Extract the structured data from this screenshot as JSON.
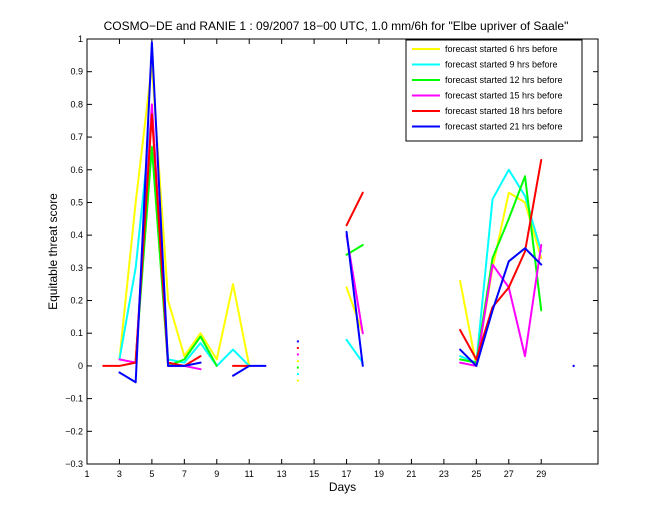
{
  "chart_data": {
    "type": "line",
    "title": "COSMO−DE and RANIE 1 : 09/2007 18−00 UTC, 1.0 mm/6h for \"Elbe upriver of Saale\"",
    "xlabel": "Days",
    "ylabel": "Equitable threat score",
    "xlim": [
      1,
      32.5
    ],
    "ylim": [
      -0.3,
      1.0
    ],
    "xticks": [
      1,
      3,
      5,
      7,
      9,
      11,
      13,
      15,
      17,
      19,
      21,
      23,
      25,
      27,
      29
    ],
    "yticks": [
      -0.3,
      -0.2,
      -0.1,
      0,
      0.1,
      0.2,
      0.3,
      0.4,
      0.5,
      0.6,
      0.7,
      0.8,
      0.9,
      1
    ],
    "xtick_labels": [
      "1",
      "3",
      "5",
      "7",
      "9",
      "11",
      "13",
      "15",
      "17",
      "19",
      "21",
      "23",
      "25",
      "27",
      "29"
    ],
    "ytick_labels": [
      "−0.3",
      "−0.2",
      "−0.1",
      "0",
      "0.1",
      "0.2",
      "0.3",
      "0.4",
      "0.5",
      "0.6",
      "0.7",
      "0.8",
      "0.9",
      "1"
    ],
    "legend_position": "top-right",
    "series": [
      {
        "name": "forecast started 6 hrs before",
        "color": "#ffff00",
        "x": [
          3,
          4,
          5,
          6,
          7,
          8,
          9,
          10,
          11,
          17,
          18,
          24,
          25,
          26,
          27,
          28,
          29
        ],
        "y": [
          0.02,
          0.5,
          0.92,
          0.2,
          0.03,
          0.1,
          0.02,
          0.25,
          0.0,
          0.24,
          0.1,
          0.26,
          0.0,
          0.3,
          0.53,
          0.5,
          0.33
        ]
      },
      {
        "name": "forecast started 9 hrs before",
        "color": "#00ffff",
        "x": [
          3,
          4,
          5,
          6,
          7,
          8,
          9,
          10,
          11,
          17,
          18,
          24,
          25,
          26,
          27,
          28,
          29
        ],
        "y": [
          0.02,
          0.3,
          0.78,
          0.02,
          0.01,
          0.07,
          0.0,
          0.05,
          0.0,
          0.08,
          0.01,
          0.03,
          0.01,
          0.51,
          0.6,
          0.52,
          0.35
        ]
      },
      {
        "name": "forecast started 12 hrs before",
        "color": "#00ff00",
        "x": [
          4,
          5,
          6,
          7,
          8,
          9,
          17,
          18,
          24,
          25,
          26,
          27,
          28,
          29
        ],
        "y": [
          0.02,
          0.67,
          0.0,
          0.02,
          0.09,
          0.0,
          0.34,
          0.37,
          0.02,
          0.01,
          0.33,
          0.45,
          0.58,
          0.17
        ]
      },
      {
        "name": "forecast started 15 hrs before",
        "color": "#ff00ff",
        "x": [
          3,
          4,
          5,
          6,
          7,
          8,
          17,
          18,
          24,
          25,
          26,
          27,
          28,
          29
        ],
        "y": [
          0.02,
          0.01,
          0.8,
          0.0,
          0.0,
          -0.01,
          0.4,
          0.1,
          0.01,
          0.0,
          0.31,
          0.24,
          0.03,
          0.37
        ]
      },
      {
        "name": "forecast started 18 hrs before",
        "color": "#ff0000",
        "x": [
          2,
          3,
          4,
          5,
          6,
          7,
          8,
          10,
          11,
          17,
          18,
          24,
          25,
          26,
          27,
          28,
          29
        ],
        "y": [
          0.0,
          0.0,
          0.01,
          0.77,
          0.01,
          0.0,
          0.03,
          0.0,
          0.0,
          0.43,
          0.53,
          0.11,
          0.02,
          0.18,
          0.24,
          0.35,
          0.63
        ]
      },
      {
        "name": "forecast started 21 hrs before",
        "color": "#0000ff",
        "x": [
          3,
          4,
          5,
          6,
          7,
          8,
          10,
          11,
          12,
          17,
          18,
          24,
          25,
          26,
          27,
          28,
          29,
          31
        ],
        "y": [
          -0.02,
          -0.05,
          0.99,
          0.0,
          0.0,
          0.01,
          -0.03,
          0.0,
          0.0,
          0.41,
          0.0,
          0.05,
          0.0,
          0.17,
          0.32,
          0.36,
          0.31,
          0.0
        ]
      }
    ],
    "markers": [
      {
        "x": 14,
        "y": 0.075,
        "color": "#0000ff"
      },
      {
        "x": 14,
        "y": 0.055,
        "color": "#ff0000"
      },
      {
        "x": 14,
        "y": 0.035,
        "color": "#ff00ff"
      },
      {
        "x": 14,
        "y": 0.015,
        "color": "#ffff00"
      },
      {
        "x": 14,
        "y": -0.005,
        "color": "#00ff00"
      },
      {
        "x": 14,
        "y": -0.025,
        "color": "#00ffff"
      },
      {
        "x": 14,
        "y": -0.045,
        "color": "#ffff00"
      }
    ]
  }
}
